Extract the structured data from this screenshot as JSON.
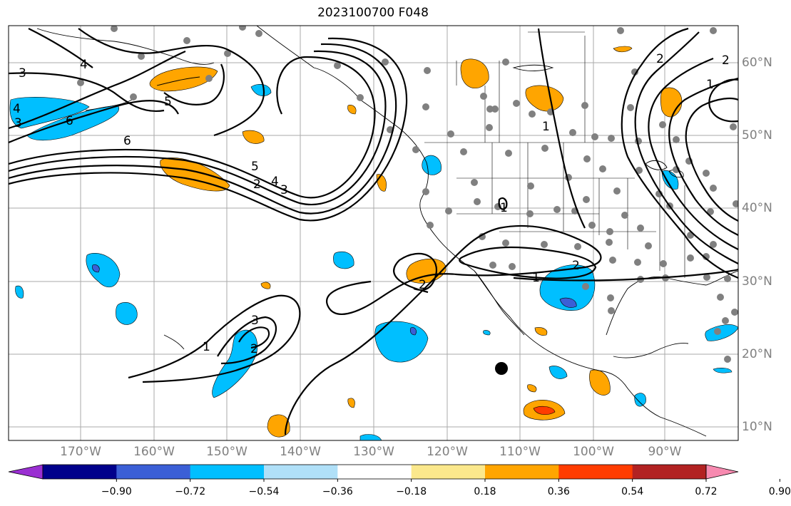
{
  "title": "2023100700 F048",
  "axes": {
    "longitude_labels": [
      "170°W",
      "160°W",
      "150°W",
      "140°W",
      "130°W",
      "120°W",
      "110°W",
      "100°W",
      "90°W"
    ],
    "latitude_labels": [
      "60°N",
      "50°N",
      "40°N",
      "30°N",
      "20°N",
      "10°N"
    ]
  },
  "contour_labels": [
    "6",
    "5",
    "4",
    "3",
    "2",
    "1",
    "3",
    "2",
    "1",
    "2",
    "1",
    "2",
    "3",
    "4",
    "5",
    "6",
    "4",
    "3",
    "2",
    "1",
    "1",
    "2"
  ],
  "colorbar": {
    "tick_labels": [
      "−0.90",
      "−0.72",
      "−0.54",
      "−0.36",
      "−0.18",
      "0.18",
      "0.36",
      "0.54",
      "0.72",
      "0.90"
    ],
    "colors": [
      "#9a2fd2",
      "#00008b",
      "#3b5fd6",
      "#00bfff",
      "#b0e0f8",
      "#ffffff",
      "#fbe88c",
      "#ffa500",
      "#ff3c00",
      "#b22222",
      "#f78ab0"
    ]
  },
  "colors": {
    "positive_fill": "#ffa500",
    "positive_strong": "#ff3c00",
    "negative_fill": "#00bfff",
    "negative_strong": "#3b5fd6",
    "station_dot": "#808080",
    "grid": "#aaaaaa",
    "contour": "#000000"
  }
}
